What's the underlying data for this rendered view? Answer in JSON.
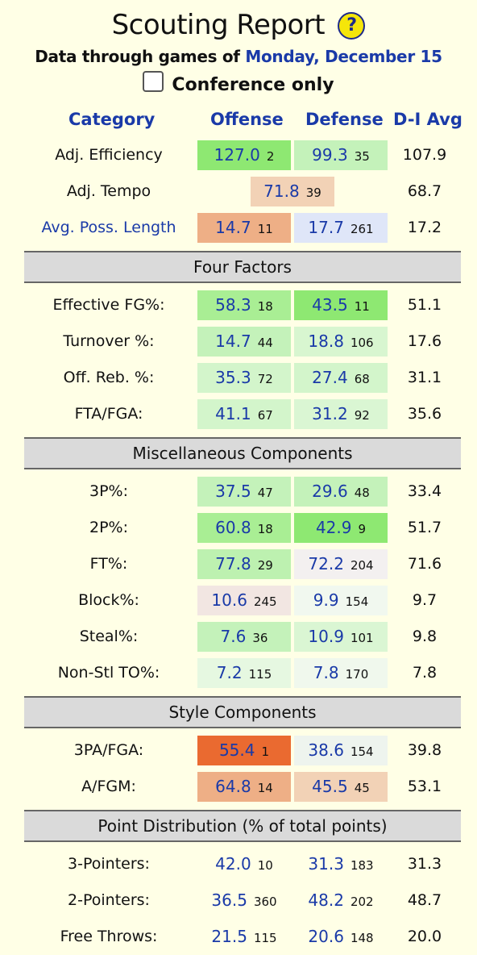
{
  "title": "Scouting Report",
  "help_icon": "?",
  "subtitle_prefix": "Data through games of",
  "subtitle_date": "Monday, December 15",
  "conference_label": "Conference only",
  "headers": {
    "category": "Category",
    "offense": "Offense",
    "defense": "Defense",
    "avg": "D-I Avg"
  },
  "top": [
    {
      "label": "Adj. Efficiency",
      "o": "127.0",
      "or": "2",
      "d": "99.3",
      "dr": "35",
      "avg": "107.9",
      "oc": "#8ee872",
      "dc": "#c4f2ba"
    },
    {
      "label": "Adj. Tempo",
      "t": "71.8",
      "tr": "39",
      "avg": "68.7",
      "tc": "#f2d2b6"
    },
    {
      "label": "Avg. Poss. Length",
      "o": "14.7",
      "or": "11",
      "d": "17.7",
      "dr": "261",
      "avg": "17.2",
      "oc": "#eeaf86",
      "dc": "#dfe6f8",
      "link": true
    }
  ],
  "sections": [
    {
      "title": "Four Factors",
      "rows": [
        {
          "label": "Effective FG%:",
          "o": "58.3",
          "or": "18",
          "d": "43.5",
          "dr": "11",
          "avg": "51.1",
          "oc": "#a9ee94",
          "dc": "#8ee872"
        },
        {
          "label": "Turnover %:",
          "o": "14.7",
          "or": "44",
          "d": "18.8",
          "dr": "106",
          "avg": "17.6",
          "oc": "#c4f2ba",
          "dc": "#d8f6d0"
        },
        {
          "label": "Off. Reb. %:",
          "o": "35.3",
          "or": "72",
          "d": "27.4",
          "dr": "68",
          "avg": "31.1",
          "oc": "#d3f5cb",
          "dc": "#d3f5cb"
        },
        {
          "label": "FTA/FGA:",
          "o": "41.1",
          "or": "67",
          "d": "31.2",
          "dr": "92",
          "avg": "35.6",
          "oc": "#d3f5cb",
          "dc": "#daf6d3"
        }
      ]
    },
    {
      "title": "Miscellaneous Components",
      "rows": [
        {
          "label": "3P%:",
          "o": "37.5",
          "or": "47",
          "d": "29.6",
          "dr": "48",
          "avg": "33.4",
          "oc": "#c4f2ba",
          "dc": "#c4f2ba"
        },
        {
          "label": "2P%:",
          "o": "60.8",
          "or": "18",
          "d": "42.9",
          "dr": "9",
          "avg": "51.7",
          "oc": "#a9ee94",
          "dc": "#8ee872"
        },
        {
          "label": "FT%:",
          "o": "77.8",
          "or": "29",
          "d": "72.2",
          "dr": "204",
          "avg": "71.6",
          "oc": "#bdf1b0",
          "dc": "#f3f0f0"
        },
        {
          "label": "Block%:",
          "o": "10.6",
          "or": "245",
          "d": "9.9",
          "dr": "154",
          "avg": "9.7",
          "oc": "#f2e6e2",
          "dc": "#f1f8ef"
        },
        {
          "label": "Steal%:",
          "o": "7.6",
          "or": "36",
          "d": "10.9",
          "dr": "101",
          "avg": "9.8",
          "oc": "#c4f2ba",
          "dc": "#daf6d3"
        },
        {
          "label": "Non-Stl TO%:",
          "o": "7.2",
          "or": "115",
          "d": "7.8",
          "dr": "170",
          "avg": "7.8",
          "oc": "#e6f8e1",
          "dc": "#f0f8ed"
        }
      ]
    },
    {
      "title": "Style Components",
      "rows": [
        {
          "label": "3PA/FGA:",
          "o": "55.4",
          "or": "1",
          "d": "38.6",
          "dr": "154",
          "avg": "39.8",
          "oc": "#ea6a30",
          "dc": "#eef4ee"
        },
        {
          "label": "A/FGM:",
          "o": "64.8",
          "or": "14",
          "d": "45.5",
          "dr": "45",
          "avg": "53.1",
          "oc": "#eeaf86",
          "dc": "#f2d2b6"
        }
      ]
    },
    {
      "title": "Point Distribution (% of total points)",
      "rows": [
        {
          "label": "3-Pointers:",
          "o": "42.0",
          "or": "10",
          "d": "31.3",
          "dr": "183",
          "avg": "31.3"
        },
        {
          "label": "2-Pointers:",
          "o": "36.5",
          "or": "360",
          "d": "48.2",
          "dr": "202",
          "avg": "48.7"
        },
        {
          "label": "Free Throws:",
          "o": "21.5",
          "or": "115",
          "d": "20.6",
          "dr": "148",
          "avg": "20.0"
        }
      ]
    }
  ]
}
